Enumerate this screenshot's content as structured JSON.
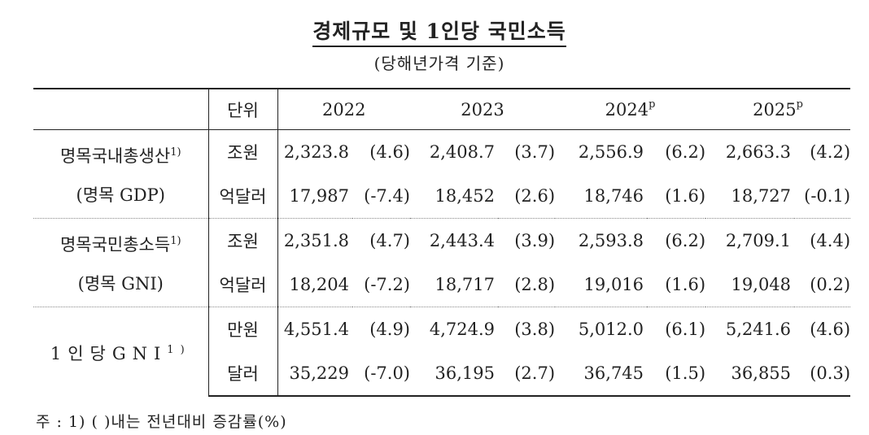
{
  "title": "경제규모 및 1인당 국민소득",
  "subtitle": "(당해년가격 기준)",
  "header": {
    "unit_label": "단위",
    "years": [
      {
        "year": "2022",
        "mark": ""
      },
      {
        "year": "2023",
        "mark": ""
      },
      {
        "year": "2024",
        "mark": "p"
      },
      {
        "year": "2025",
        "mark": "p"
      }
    ]
  },
  "groups": [
    {
      "label_line1": "명목국내총생산",
      "label_sup": "1)",
      "label_line2": "(명목 GDP)",
      "rows": [
        {
          "unit": "조원",
          "cells": [
            {
              "value": "2,323.8",
              "growth": "(4.6)"
            },
            {
              "value": "2,408.7",
              "growth": "(3.7)"
            },
            {
              "value": "2,556.9",
              "growth": "(6.2)"
            },
            {
              "value": "2,663.3",
              "growth": "(4.2)"
            }
          ]
        },
        {
          "unit": "억달러",
          "cells": [
            {
              "value": "17,987",
              "growth": "(-7.4)"
            },
            {
              "value": "18,452",
              "growth": "(2.6)"
            },
            {
              "value": "18,746",
              "growth": "(1.6)"
            },
            {
              "value": "18,727",
              "growth": "(-0.1)"
            }
          ]
        }
      ]
    },
    {
      "label_line1": "명목국민총소득",
      "label_sup": "1)",
      "label_line2": "(명목 GNI)",
      "rows": [
        {
          "unit": "조원",
          "cells": [
            {
              "value": "2,351.8",
              "growth": "(4.7)"
            },
            {
              "value": "2,443.4",
              "growth": "(3.9)"
            },
            {
              "value": "2,593.8",
              "growth": "(6.2)"
            },
            {
              "value": "2,709.1",
              "growth": "(4.4)"
            }
          ]
        },
        {
          "unit": "억달러",
          "cells": [
            {
              "value": "18,204",
              "growth": "(-7.2)"
            },
            {
              "value": "18,717",
              "growth": "(2.8)"
            },
            {
              "value": "19,016",
              "growth": "(1.6)"
            },
            {
              "value": "19,048",
              "growth": "(0.2)"
            }
          ]
        }
      ]
    },
    {
      "label_line1": "1인당GNI",
      "label_sup": "1)",
      "label_line2": "",
      "rows": [
        {
          "unit": "만원",
          "cells": [
            {
              "value": "4,551.4",
              "growth": "(4.9)"
            },
            {
              "value": "4,724.9",
              "growth": "(3.8)"
            },
            {
              "value": "5,012.0",
              "growth": "(6.1)"
            },
            {
              "value": "5,241.6",
              "growth": "(4.6)"
            }
          ]
        },
        {
          "unit": "달러",
          "cells": [
            {
              "value": "35,229",
              "growth": "(-7.0)"
            },
            {
              "value": "36,195",
              "growth": "(2.7)"
            },
            {
              "value": "36,745",
              "growth": "(1.5)"
            },
            {
              "value": "36,855",
              "growth": "(0.3)"
            }
          ]
        }
      ]
    }
  ],
  "footnote": "주 : 1) (   )내는 전년대비 증감률(%)"
}
